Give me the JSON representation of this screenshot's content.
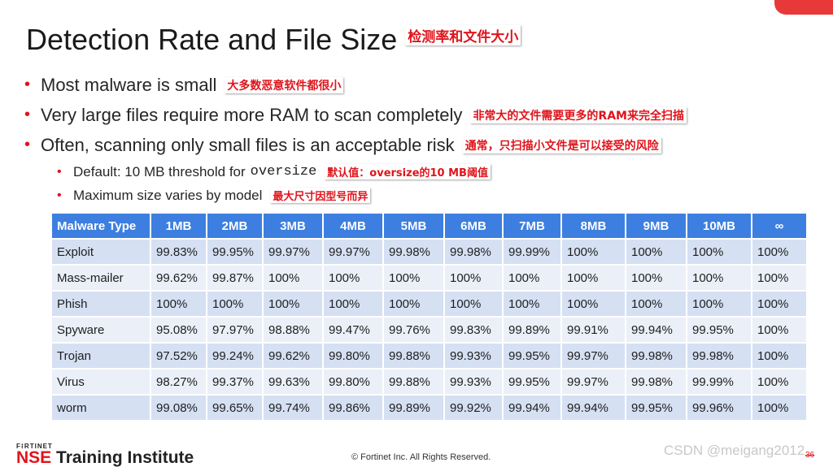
{
  "slide": {
    "title": "Detection Rate and File Size",
    "title_note": "检测率和文件大小",
    "bullets": [
      {
        "text": "Most malware is small",
        "note": "大多数恶意软件都很小"
      },
      {
        "text": "Very large files require more RAM to scan completely",
        "note": "非常大的文件需要更多的RAM来完全扫描"
      },
      {
        "text": "Often, scanning only small files is an acceptable risk",
        "note": "通常，只扫描小文件是可以接受的风险"
      }
    ],
    "sub_bullets": [
      {
        "text": "Default: 10 MB threshold for",
        "code": "oversize",
        "note": "默认值：oversize的10 MB阈值"
      },
      {
        "text": "Maximum size varies by model",
        "note": "最大尺寸因型号而异"
      }
    ]
  },
  "table": {
    "headers": [
      "Malware Type",
      "1MB",
      "2MB",
      "3MB",
      "4MB",
      "5MB",
      "6MB",
      "7MB",
      "8MB",
      "9MB",
      "10MB",
      "∞"
    ],
    "rows": [
      [
        "Exploit",
        "99.83%",
        "99.95%",
        "99.97%",
        "99.97%",
        "99.98%",
        "99.98%",
        "99.99%",
        "100%",
        "100%",
        "100%",
        "100%"
      ],
      [
        "Mass-mailer",
        "99.62%",
        "99.87%",
        "100%",
        "100%",
        "100%",
        "100%",
        "100%",
        "100%",
        "100%",
        "100%",
        "100%"
      ],
      [
        "Phish",
        "100%",
        "100%",
        "100%",
        "100%",
        "100%",
        "100%",
        "100%",
        "100%",
        "100%",
        "100%",
        "100%"
      ],
      [
        "Spyware",
        "95.08%",
        "97.97%",
        "98.88%",
        "99.47%",
        "99.76%",
        "99.83%",
        "99.89%",
        "99.91%",
        "99.94%",
        "99.95%",
        "100%"
      ],
      [
        "Trojan",
        "97.52%",
        "99.24%",
        "99.62%",
        "99.80%",
        "99.88%",
        "99.93%",
        "99.95%",
        "99.97%",
        "99.98%",
        "99.98%",
        "100%"
      ],
      [
        "Virus",
        "98.27%",
        "99.37%",
        "99.63%",
        "99.80%",
        "99.88%",
        "99.93%",
        "99.95%",
        "99.97%",
        "99.98%",
        "99.99%",
        "100%"
      ],
      [
        "worm",
        "99.08%",
        "99.65%",
        "99.74%",
        "99.86%",
        "99.89%",
        "99.92%",
        "99.94%",
        "99.94%",
        "99.95%",
        "99.96%",
        "100%"
      ]
    ]
  },
  "footer": {
    "brand_top": "F⁝RTINET",
    "brand_nse": "NSE",
    "brand_rest": " Training Institute",
    "copyright": "© Fortinet Inc. All Rights Reserved.",
    "watermark": "CSDN @meigang2012",
    "page": "36"
  },
  "colors": {
    "accent": "#e0141b",
    "header": "#3d7fe0",
    "row_odd": "#d6e0f3",
    "row_even": "#ebeff8"
  }
}
